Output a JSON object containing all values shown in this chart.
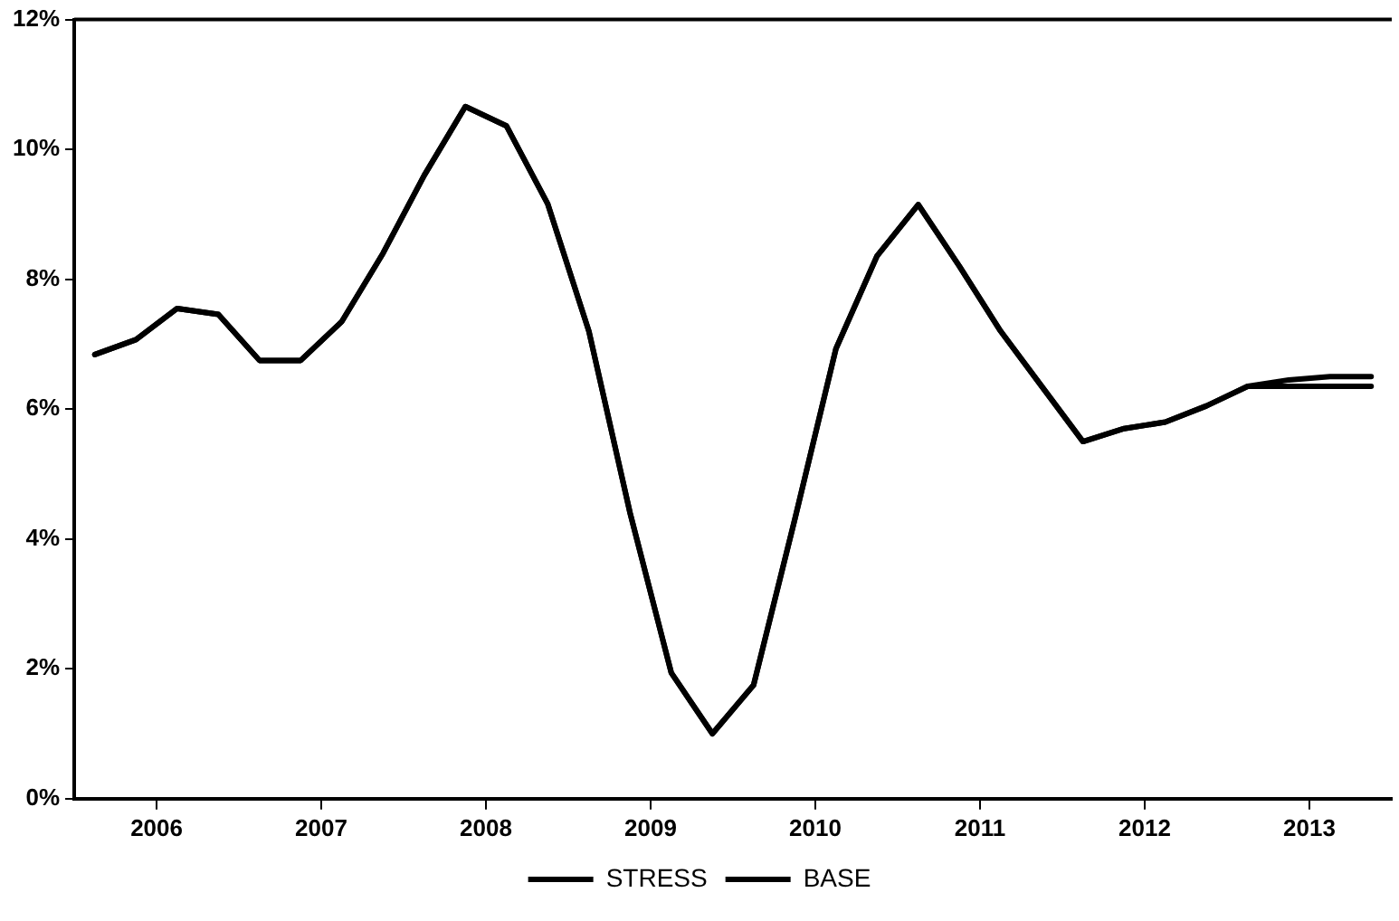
{
  "chart_data": {
    "type": "line",
    "x": [
      2006.125,
      2006.375,
      2006.625,
      2006.875,
      2007.125,
      2007.375,
      2007.625,
      2007.875,
      2008.125,
      2008.375,
      2008.625,
      2008.875,
      2009.125,
      2009.375,
      2009.625,
      2009.875,
      2010.125,
      2010.375,
      2010.625,
      2010.875,
      2011.125,
      2011.375,
      2011.625,
      2011.875,
      2012.125,
      2012.375,
      2012.625,
      2012.875,
      2013.125,
      2013.375,
      2013.625,
      2013.875
    ],
    "series": [
      {
        "name": "STRESS",
        "color": "#000000",
        "values": [
          6.84,
          7.07,
          7.55,
          7.46,
          6.75,
          6.75,
          7.35,
          8.4,
          9.6,
          10.66,
          10.36,
          9.16,
          7.2,
          4.4,
          1.94,
          1.0,
          1.75,
          4.3,
          6.93,
          8.36,
          9.15,
          8.2,
          7.2,
          6.35,
          5.5,
          5.7,
          5.8,
          6.05,
          6.35,
          6.35,
          6.35,
          6.35
        ]
      },
      {
        "name": "BASE",
        "color": "#000000",
        "values": [
          6.84,
          7.07,
          7.55,
          7.46,
          6.75,
          6.75,
          7.35,
          8.4,
          9.6,
          10.66,
          10.36,
          9.16,
          7.2,
          4.4,
          1.94,
          1.0,
          1.75,
          4.3,
          6.93,
          8.36,
          9.15,
          8.2,
          7.2,
          6.35,
          5.5,
          5.7,
          5.8,
          6.05,
          6.35,
          6.45,
          6.5,
          6.5
        ]
      }
    ],
    "xlim": [
      2006,
      2014
    ],
    "xticks": [
      {
        "value": 2006.5,
        "label": "2006"
      },
      {
        "value": 2007.5,
        "label": "2007"
      },
      {
        "value": 2008.5,
        "label": "2008"
      },
      {
        "value": 2009.5,
        "label": "2009"
      },
      {
        "value": 2010.5,
        "label": "2010"
      },
      {
        "value": 2011.5,
        "label": "2011"
      },
      {
        "value": 2012.5,
        "label": "2012"
      },
      {
        "value": 2013.5,
        "label": "2013"
      }
    ],
    "ylim": [
      0,
      12
    ],
    "yticks": [
      {
        "value": 0,
        "label": "0%"
      },
      {
        "value": 2,
        "label": "2%"
      },
      {
        "value": 4,
        "label": "4%"
      },
      {
        "value": 6,
        "label": "6%"
      },
      {
        "value": 8,
        "label": "8%"
      },
      {
        "value": 10,
        "label": "10%"
      },
      {
        "value": 12,
        "label": "12%"
      }
    ],
    "grid": false,
    "legend": "bottom",
    "marker": "none",
    "line_style": "solid"
  }
}
